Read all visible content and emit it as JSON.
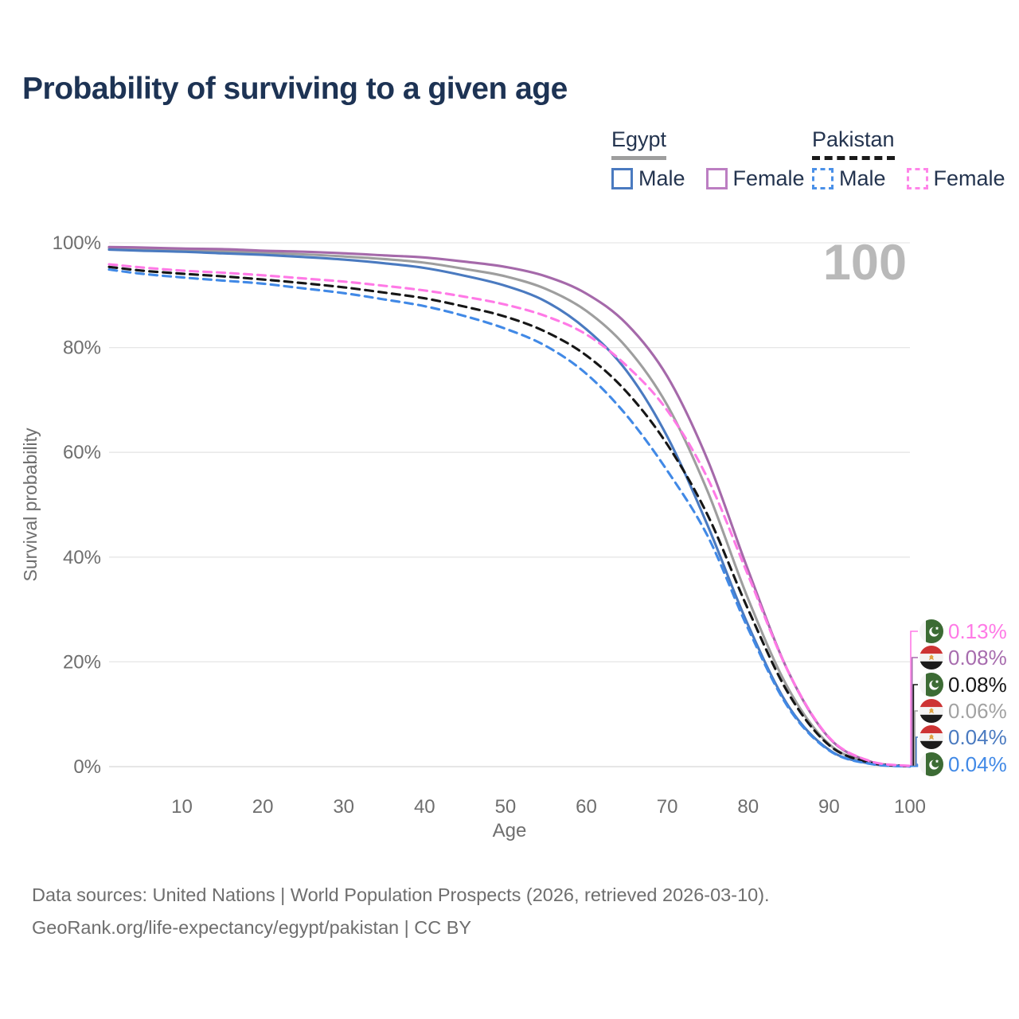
{
  "header": {
    "title": "Probability of surviving to a given age"
  },
  "legend": {
    "groups": [
      {
        "country": "Egypt",
        "line_style": "solid",
        "underline_color": "#9e9e9e",
        "items": [
          {
            "label": "Male",
            "color": "#4a7ac0"
          },
          {
            "label": "Female",
            "color": "#bc7ec2"
          }
        ]
      },
      {
        "country": "Pakistan",
        "line_style": "dashed",
        "underline_color": "#1a1a1a",
        "items": [
          {
            "label": "Male",
            "color": "#4a90e8"
          },
          {
            "label": "Female",
            "color": "#ff85e9"
          }
        ]
      }
    ]
  },
  "chart_data": {
    "type": "line",
    "title": "Probability of surviving to a given age",
    "xlabel": "Age",
    "ylabel": "Survival probability",
    "xlim": [
      1,
      100
    ],
    "ylim": [
      0,
      100
    ],
    "grid": "horizontal",
    "legend_position": "top-right",
    "age_watermark": "100",
    "x_ticks": [
      10,
      20,
      30,
      40,
      50,
      60,
      70,
      80,
      90,
      100
    ],
    "y_ticks": [
      {
        "value": 0,
        "label": "0%"
      },
      {
        "value": 20,
        "label": "20%"
      },
      {
        "value": 40,
        "label": "40%"
      },
      {
        "value": 60,
        "label": "60%"
      },
      {
        "value": 80,
        "label": "80%"
      },
      {
        "value": 100,
        "label": "100%"
      }
    ],
    "x": [
      1,
      5,
      10,
      15,
      20,
      25,
      30,
      35,
      40,
      45,
      50,
      55,
      60,
      65,
      70,
      75,
      80,
      85,
      90,
      95,
      100
    ],
    "series": [
      {
        "name": "Egypt Both sexes",
        "country": "Egypt",
        "sex": "Both",
        "color": "#9e9e9e",
        "dash": false,
        "values": [
          99.0,
          98.8,
          98.6,
          98.4,
          98.1,
          97.8,
          97.4,
          96.9,
          96.2,
          95.0,
          93.6,
          91.2,
          87.0,
          80.0,
          69.0,
          52.5,
          32.0,
          14.8,
          4.3,
          0.8,
          0.06
        ]
      },
      {
        "name": "Egypt Male",
        "country": "Egypt",
        "sex": "Male",
        "color": "#4a7ac0",
        "dash": false,
        "values": [
          98.7,
          98.5,
          98.3,
          98.0,
          97.7,
          97.3,
          96.8,
          96.1,
          95.2,
          93.7,
          91.8,
          88.8,
          83.5,
          75.5,
          63.0,
          46.0,
          27.0,
          11.5,
          3.2,
          0.6,
          0.04
        ]
      },
      {
        "name": "Egypt Female",
        "country": "Egypt",
        "sex": "Female",
        "color": "#a569aa",
        "dash": false,
        "values": [
          99.2,
          99.1,
          98.9,
          98.8,
          98.5,
          98.3,
          98.0,
          97.6,
          97.2,
          96.4,
          95.4,
          93.6,
          90.3,
          84.5,
          74.5,
          58.5,
          37.5,
          18.0,
          5.5,
          1.0,
          0.08
        ]
      },
      {
        "name": "Pakistan Both sexes",
        "country": "Pakistan",
        "sex": "Both",
        "color": "#161616",
        "dash": true,
        "values": [
          95.4,
          94.7,
          94.1,
          93.6,
          93.0,
          92.3,
          91.5,
          90.5,
          89.4,
          87.8,
          85.9,
          83.0,
          78.5,
          71.5,
          61.5,
          48.0,
          30.0,
          13.9,
          4.1,
          0.8,
          0.08
        ]
      },
      {
        "name": "Pakistan Male",
        "country": "Pakistan",
        "sex": "Male",
        "color": "#4189e6",
        "dash": true,
        "values": [
          94.9,
          94.1,
          93.4,
          92.8,
          92.2,
          91.3,
          90.4,
          89.2,
          87.9,
          86.0,
          83.6,
          80.3,
          75.0,
          67.0,
          56.5,
          44.0,
          26.3,
          11.2,
          3.1,
          0.55,
          0.04
        ]
      },
      {
        "name": "Pakistan Female",
        "country": "Pakistan",
        "sex": "Female",
        "color": "#ff79e6",
        "dash": true,
        "values": [
          95.9,
          95.3,
          94.7,
          94.3,
          93.8,
          93.2,
          92.6,
          91.8,
          90.9,
          89.7,
          88.2,
          86.0,
          82.5,
          76.5,
          68.0,
          55.0,
          36.5,
          18.0,
          5.6,
          1.1,
          0.13
        ]
      }
    ],
    "end_labels": [
      {
        "series": "Pakistan Female",
        "flag": "pakistan",
        "value": "0.13%",
        "color": "#ff79e6",
        "end_value": 0.13
      },
      {
        "series": "Egypt Female",
        "flag": "egypt",
        "value": "0.08%",
        "color": "#a76cae",
        "end_value": 0.08
      },
      {
        "series": "Pakistan Both sexes",
        "flag": "pakistan",
        "value": "0.08%",
        "color": "#161616",
        "end_value": 0.08
      },
      {
        "series": "Egypt Both sexes",
        "flag": "egypt",
        "value": "0.06%",
        "color": "#a2a2a2",
        "end_value": 0.06
      },
      {
        "series": "Egypt Male",
        "flag": "egypt",
        "value": "0.04%",
        "color": "#4a7ac0",
        "end_value": 0.04
      },
      {
        "series": "Pakistan Male",
        "flag": "pakistan",
        "value": "0.04%",
        "color": "#4189e6",
        "end_value": 0.04
      }
    ]
  },
  "footer": {
    "line1": "Data sources: United Nations | World Population Prospects (2026, retrieved 2026-03-10).",
    "line2": "GeoRank.org/life-expectancy/egypt/pakistan | CC BY"
  }
}
